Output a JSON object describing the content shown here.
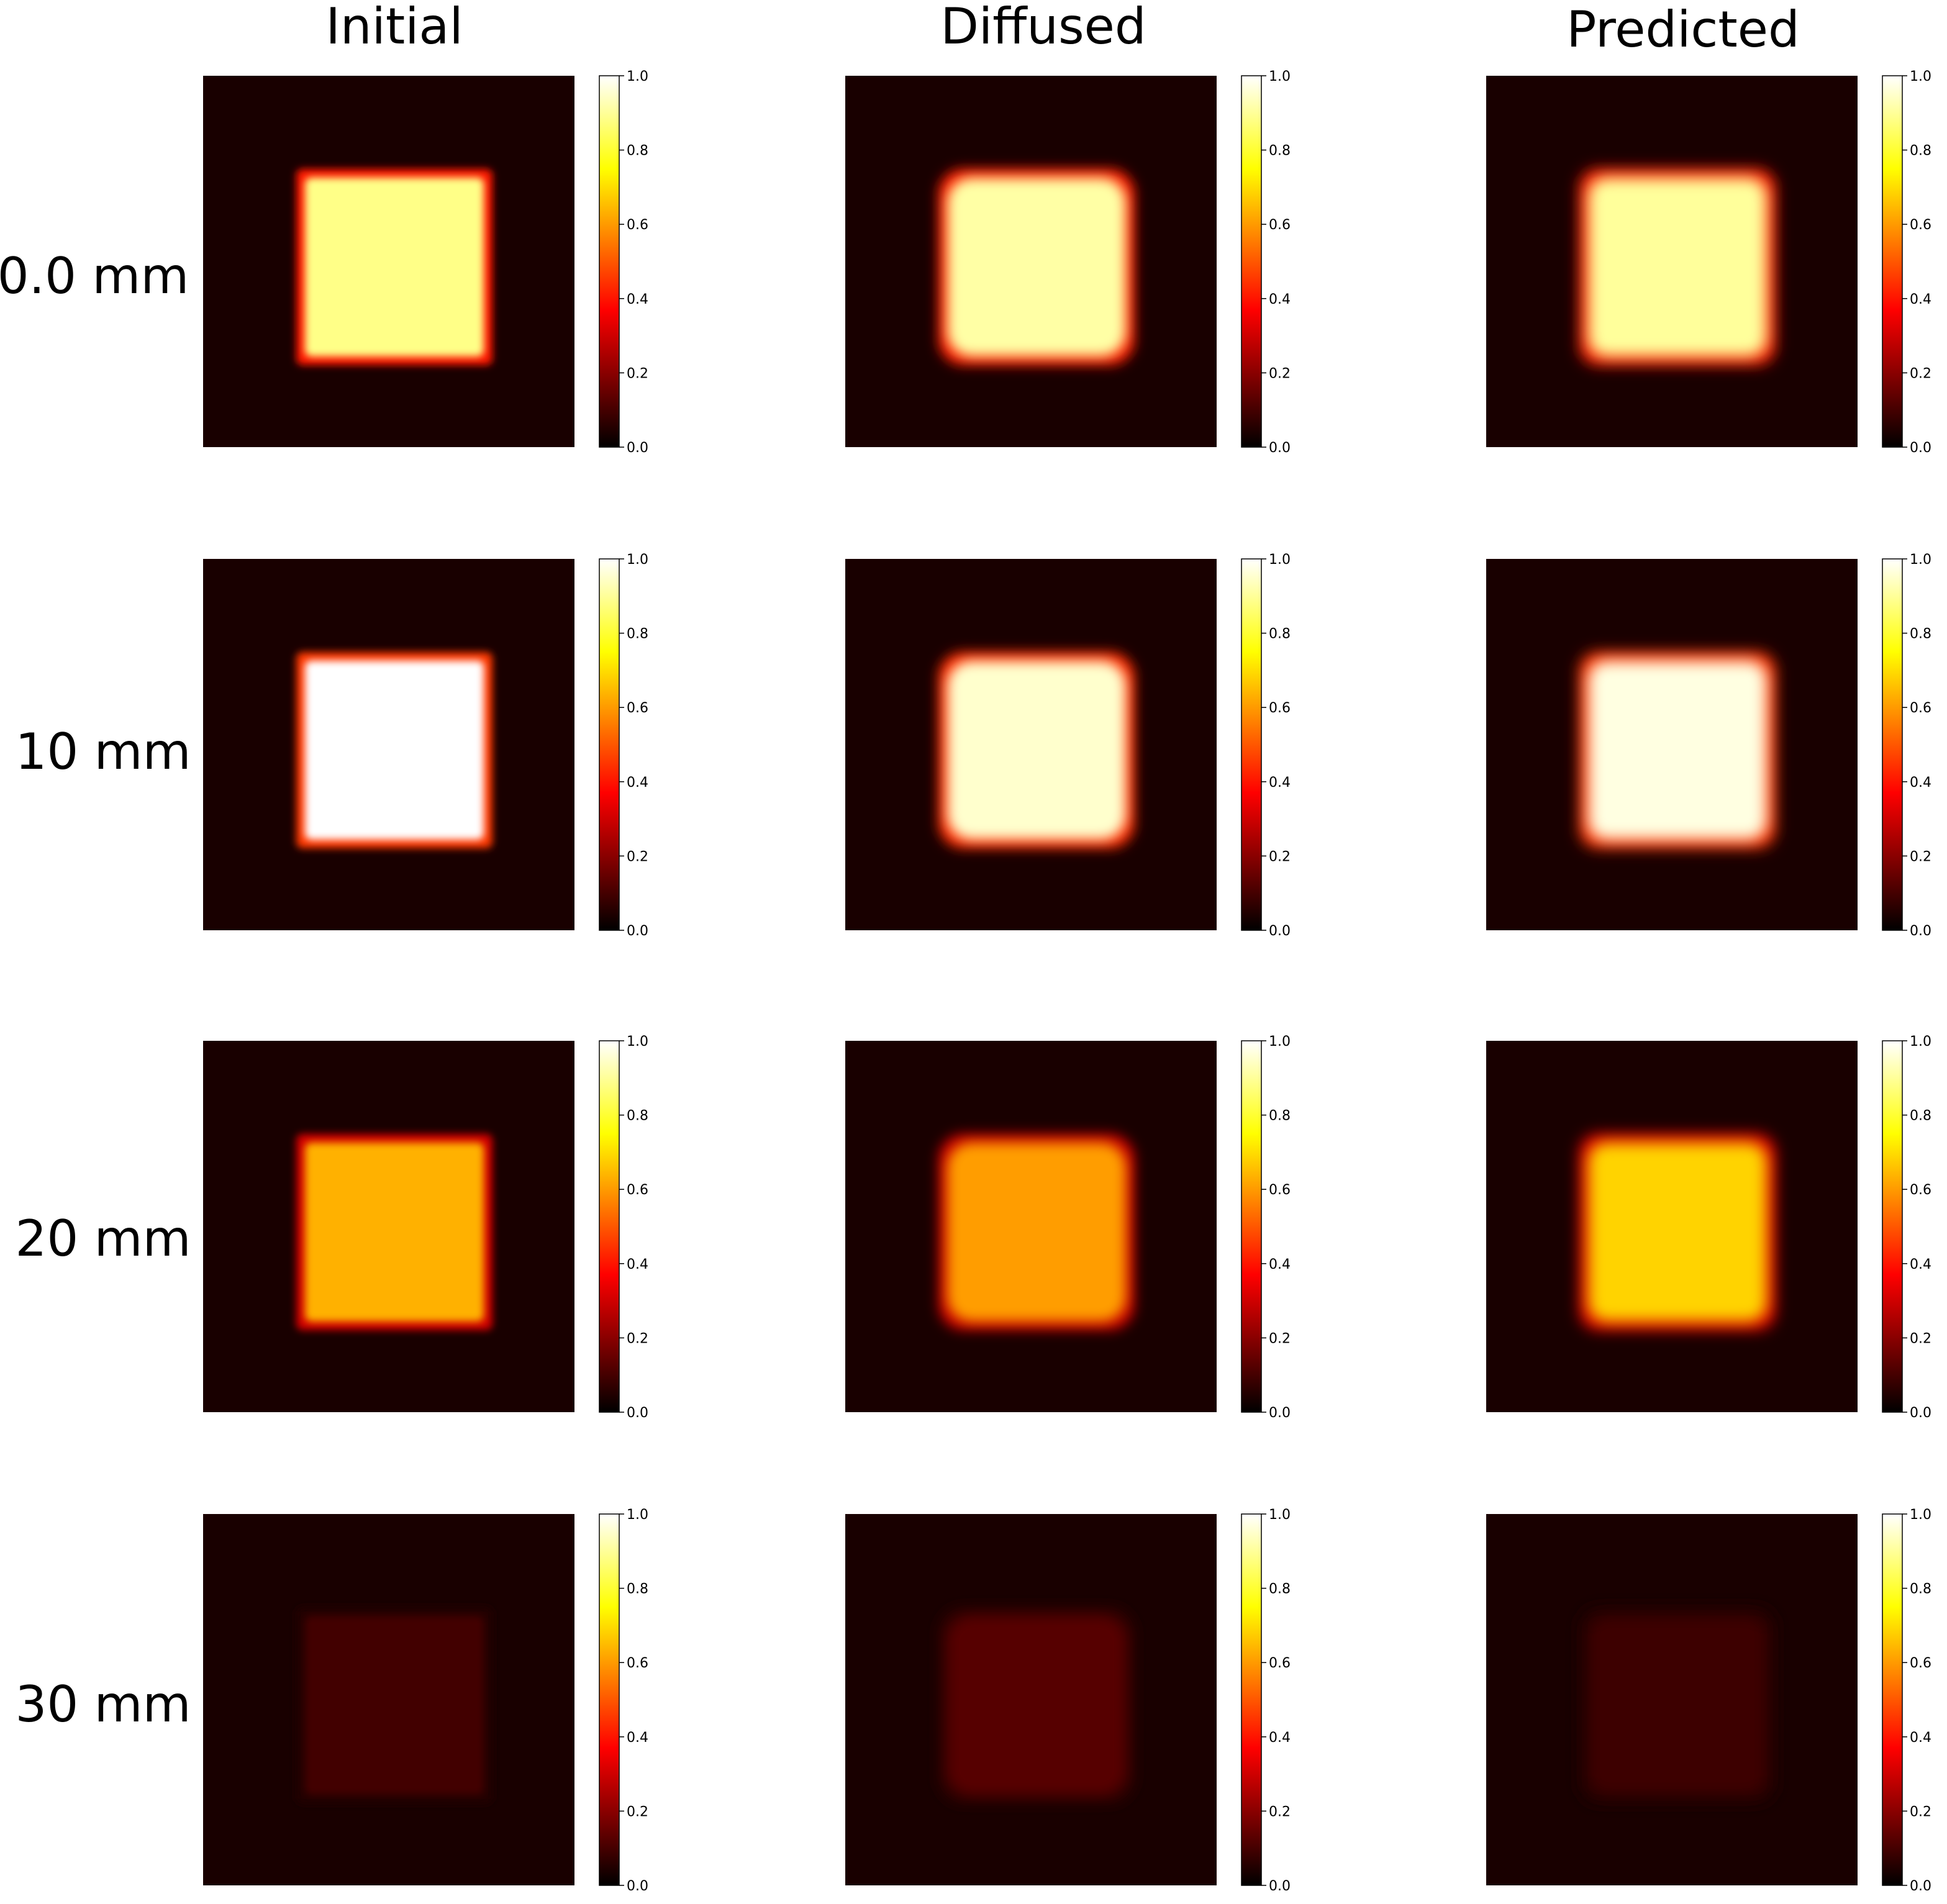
{
  "chart_data": {
    "type": "heatmap",
    "colormap": "hot",
    "columns": [
      "Initial",
      "Diffused",
      "Predicted"
    ],
    "rows": [
      "0.0 mm",
      "10 mm",
      "20 mm",
      "30 mm"
    ],
    "colorbar": {
      "range": [
        0.0,
        1.0
      ],
      "ticks": [
        "0.0",
        "0.2",
        "0.4",
        "0.6",
        "0.8",
        "1.0"
      ]
    },
    "panels": [
      {
        "row": "0.0 mm",
        "column": "Initial",
        "square_value": 0.88,
        "background": 0.02
      },
      {
        "row": "0.0 mm",
        "column": "Diffused",
        "square_value": 0.91,
        "background": 0.02
      },
      {
        "row": "0.0 mm",
        "column": "Predicted",
        "square_value": 0.9,
        "background": 0.02
      },
      {
        "row": "10 mm",
        "column": "Initial",
        "square_value": 1.0,
        "background": 0.02
      },
      {
        "row": "10 mm",
        "column": "Diffused",
        "square_value": 0.95,
        "background": 0.02
      },
      {
        "row": "10 mm",
        "column": "Predicted",
        "square_value": 0.97,
        "background": 0.02
      },
      {
        "row": "20 mm",
        "column": "Initial",
        "square_value": 0.63,
        "background": 0.02
      },
      {
        "row": "20 mm",
        "column": "Diffused",
        "square_value": 0.6,
        "background": 0.02
      },
      {
        "row": "20 mm",
        "column": "Predicted",
        "square_value": 0.68,
        "background": 0.02
      },
      {
        "row": "30 mm",
        "column": "Initial",
        "square_value": 0.08,
        "background": 0.02
      },
      {
        "row": "30 mm",
        "column": "Diffused",
        "square_value": 0.11,
        "background": 0.02
      },
      {
        "row": "30 mm",
        "column": "Predicted",
        "square_value": 0.07,
        "background": 0.02
      }
    ]
  }
}
